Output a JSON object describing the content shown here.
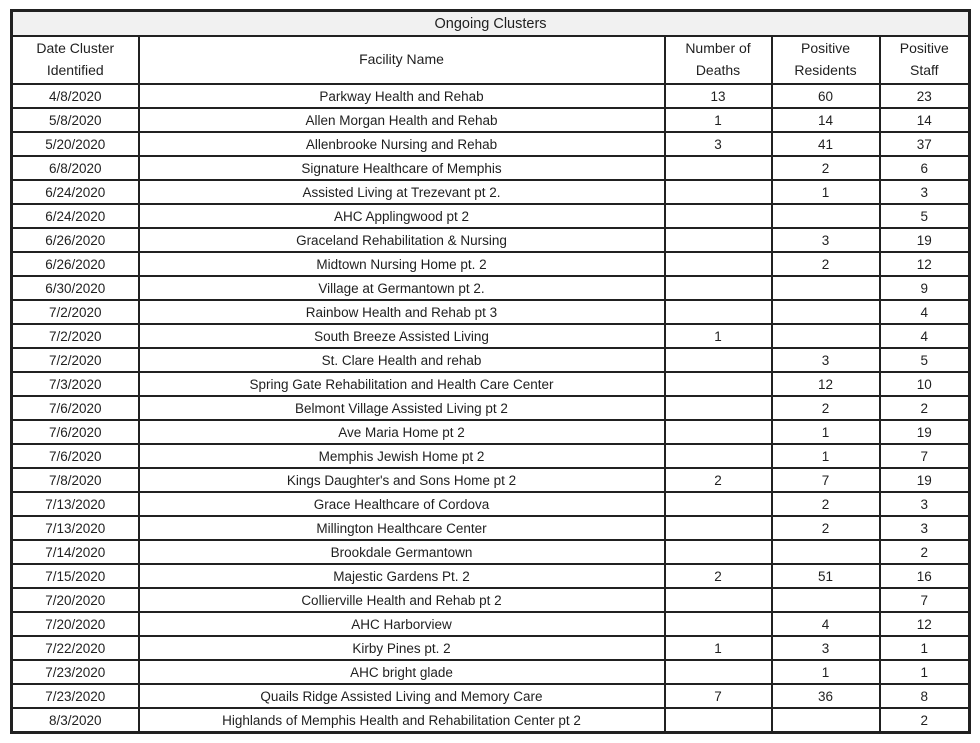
{
  "chart_data": {
    "type": "table",
    "title": "Ongoing Clusters",
    "columns": [
      "Date Cluster Identified",
      "Facility Name",
      "Number of Deaths",
      "Positive Residents",
      "Positive Staff"
    ],
    "rows": [
      [
        "4/8/2020",
        "Parkway Health and Rehab",
        "13",
        "60",
        "23"
      ],
      [
        "5/8/2020",
        "Allen Morgan Health and Rehab",
        "1",
        "14",
        "14"
      ],
      [
        "5/20/2020",
        "Allenbrooke Nursing and Rehab",
        "3",
        "41",
        "37"
      ],
      [
        "6/8/2020",
        "Signature Healthcare of Memphis",
        "",
        "2",
        "6"
      ],
      [
        "6/24/2020",
        "Assisted Living at Trezevant pt 2.",
        "",
        "1",
        "3"
      ],
      [
        "6/24/2020",
        "AHC Applingwood pt 2",
        "",
        "",
        "5"
      ],
      [
        "6/26/2020",
        "Graceland Rehabilitation & Nursing",
        "",
        "3",
        "19"
      ],
      [
        "6/26/2020",
        "Midtown Nursing Home pt. 2",
        "",
        "2",
        "12"
      ],
      [
        "6/30/2020",
        "Village at Germantown pt 2.",
        "",
        "",
        "9"
      ],
      [
        "7/2/2020",
        "Rainbow Health and Rehab pt 3",
        "",
        "",
        "4"
      ],
      [
        "7/2/2020",
        "South Breeze Assisted Living",
        "1",
        "",
        "4"
      ],
      [
        "7/2/2020",
        "St. Clare Health and rehab",
        "",
        "3",
        "5"
      ],
      [
        "7/3/2020",
        "Spring Gate Rehabilitation and Health Care Center",
        "",
        "12",
        "10"
      ],
      [
        "7/6/2020",
        "Belmont Village Assisted Living pt 2",
        "",
        "2",
        "2"
      ],
      [
        "7/6/2020",
        "Ave Maria Home pt 2",
        "",
        "1",
        "19"
      ],
      [
        "7/6/2020",
        "Memphis Jewish Home pt 2",
        "",
        "1",
        "7"
      ],
      [
        "7/8/2020",
        "Kings Daughter's and Sons Home pt 2",
        "2",
        "7",
        "19"
      ],
      [
        "7/13/2020",
        "Grace Healthcare of Cordova",
        "",
        "2",
        "3"
      ],
      [
        "7/13/2020",
        "Millington Healthcare Center",
        "",
        "2",
        "3"
      ],
      [
        "7/14/2020",
        "Brookdale Germantown",
        "",
        "",
        "2"
      ],
      [
        "7/15/2020",
        "Majestic Gardens Pt. 2",
        "2",
        "51",
        "16"
      ],
      [
        "7/20/2020",
        "Collierville Health and Rehab pt 2",
        "",
        "",
        "7"
      ],
      [
        "7/20/2020",
        "AHC Harborview",
        "",
        "4",
        "12"
      ],
      [
        "7/22/2020",
        "Kirby Pines pt. 2",
        "1",
        "3",
        "1"
      ],
      [
        "7/23/2020",
        "AHC bright glade",
        "",
        "1",
        "1"
      ],
      [
        "7/23/2020",
        "Quails Ridge Assisted Living and Memory Care",
        "7",
        "36",
        "8"
      ],
      [
        "8/3/2020",
        "Highlands of Memphis Health and Rehabilitation Center pt 2",
        "",
        "",
        "2"
      ]
    ],
    "style": {
      "title_background": "#f1f1f1",
      "border_color": "#212121",
      "text_color": "#1f1f1f",
      "row_background": "#ffffff"
    }
  }
}
